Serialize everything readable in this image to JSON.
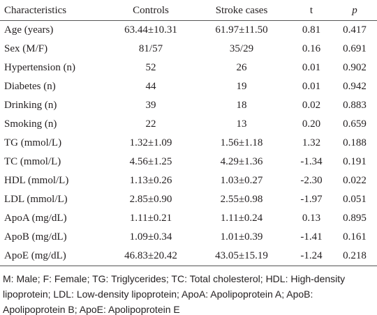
{
  "table": {
    "header": [
      "Characteristics",
      "Controls",
      "Stroke cases",
      "t",
      "p"
    ],
    "rows": [
      [
        "Age (years)",
        "63.44±10.31",
        "61.97±11.50",
        "0.81",
        "0.417"
      ],
      [
        "Sex (M/F)",
        "81/57",
        "35/29",
        "0.16",
        "0.691"
      ],
      [
        "Hypertension (n)",
        "52",
        "26",
        "0.01",
        "0.902"
      ],
      [
        "Diabetes (n)",
        "44",
        "19",
        "0.01",
        "0.942"
      ],
      [
        "Drinking (n)",
        "39",
        "18",
        "0.02",
        "0.883"
      ],
      [
        "Smoking (n)",
        "22",
        "13",
        "0.20",
        "0.659"
      ],
      [
        "TG (mmol/L)",
        "1.32±1.09",
        "1.56±1.18",
        "1.32",
        "0.188"
      ],
      [
        "TC (mmol/L)",
        "4.56±1.25",
        "4.29±1.36",
        "-1.34",
        "0.191"
      ],
      [
        "HDL (mmol/L)",
        "1.13±0.26",
        "1.03±0.27",
        "-2.30",
        "0.022"
      ],
      [
        "LDL (mmol/L)",
        "2.85±0.90",
        "2.55±0.98",
        "-1.97",
        "0.051"
      ],
      [
        "ApoA (mg/dL)",
        "1.11±0.21",
        "1.11±0.24",
        "0.13",
        "0.895"
      ],
      [
        "ApoB (mg/dL)",
        "1.09±0.34",
        "1.01±0.39",
        "-1.41",
        "0.161"
      ],
      [
        "ApoE (mg/dL)",
        "46.83±20.42",
        "43.05±15.19",
        "-1.24",
        "0.218"
      ]
    ]
  },
  "footnote": "M: Male; F: Female; TG: Triglycerides; TC: Total cholesterol; HDL: High-density lipoprotein; LDL: Low-density lipoprotein; ApoA: Apolipoprotein A; ApoB: Apolipoprotein B; ApoE: Apolipoprotein E"
}
